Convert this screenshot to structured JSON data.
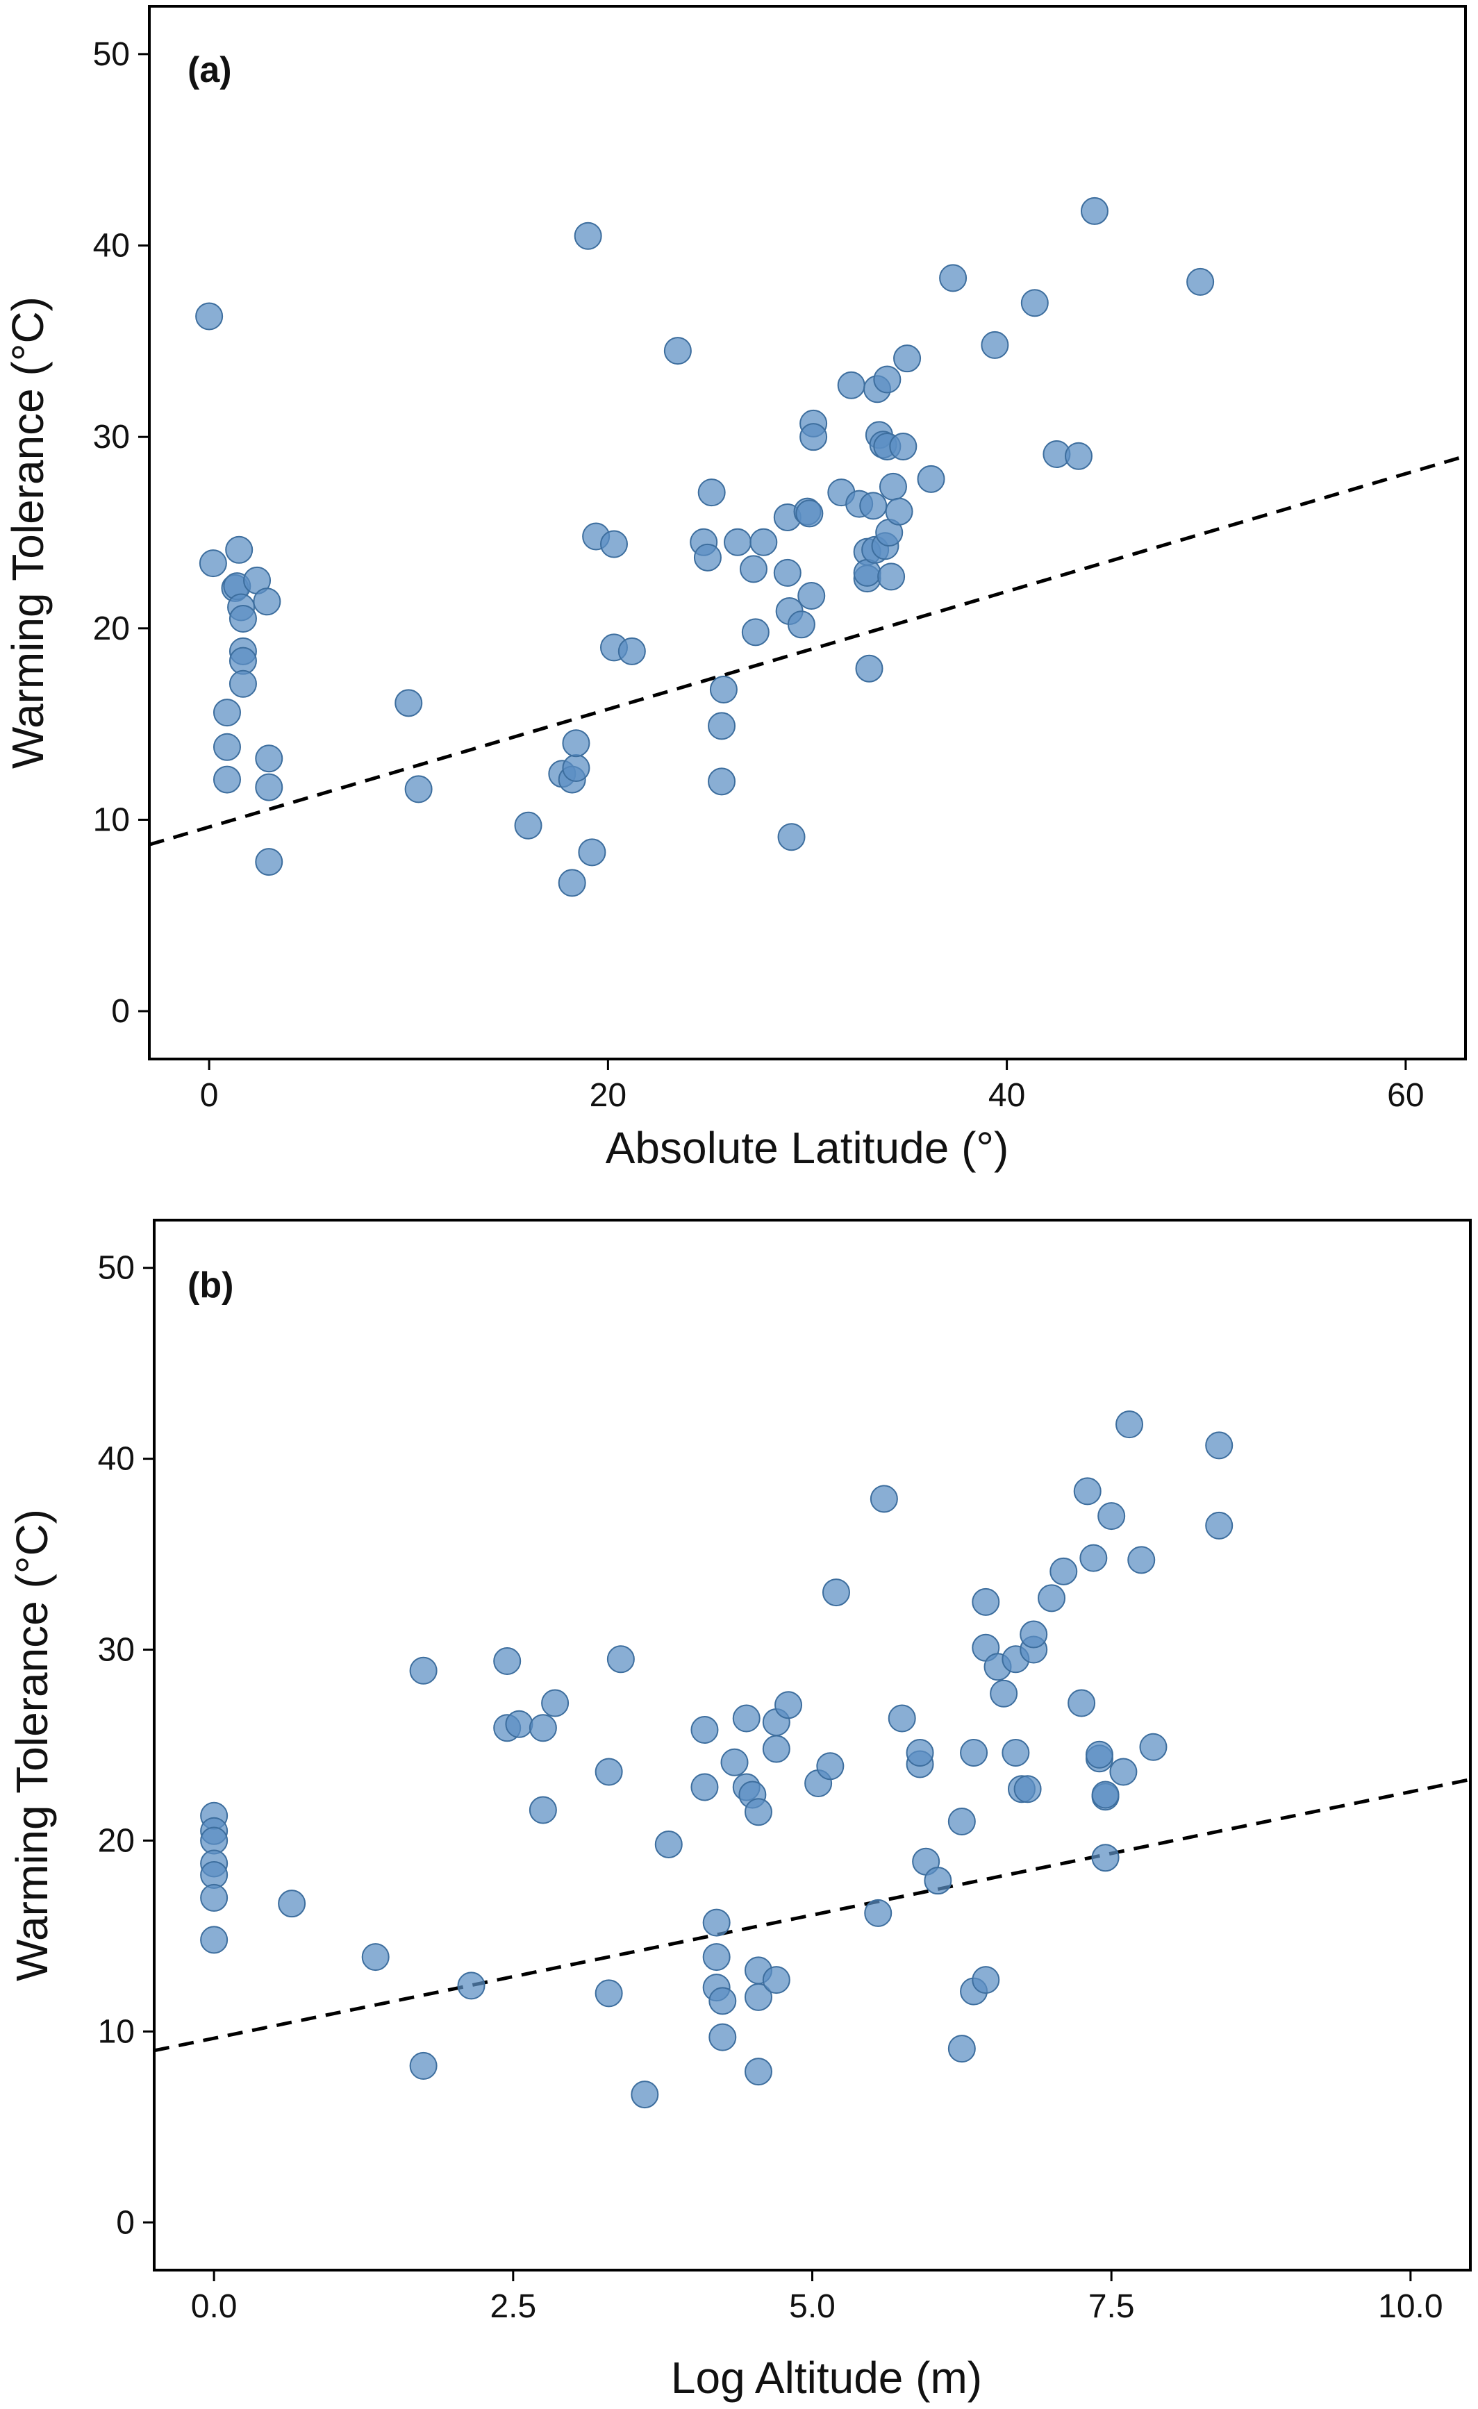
{
  "chart_data": [
    {
      "type": "scatter",
      "panel_label": "(a)",
      "xlabel": "Absolute Latitude (°)",
      "ylabel": "Warming Tolerance (°C)",
      "xlim": [
        -3,
        63
      ],
      "ylim": [
        -2.5,
        52.5
      ],
      "xticks": [
        0,
        20,
        40,
        60
      ],
      "yticks": [
        0,
        10,
        20,
        30,
        40,
        50
      ],
      "marker_color": "#5b8fc4",
      "trendline": {
        "style": "dashed",
        "x": [
          -3,
          63
        ],
        "y": [
          8.7,
          29.0
        ]
      },
      "points": [
        [
          0,
          36.3
        ],
        [
          0.2,
          23.4
        ],
        [
          0.9,
          15.6
        ],
        [
          0.9,
          13.8
        ],
        [
          0.9,
          12.1
        ],
        [
          1.3,
          22.1
        ],
        [
          1.4,
          22.2
        ],
        [
          1.5,
          24.1
        ],
        [
          1.6,
          21.1
        ],
        [
          1.7,
          20.5
        ],
        [
          1.7,
          18.8
        ],
        [
          1.7,
          18.3
        ],
        [
          1.7,
          17.1
        ],
        [
          2.4,
          22.5
        ],
        [
          2.9,
          21.4
        ],
        [
          3.0,
          13.2
        ],
        [
          3.0,
          11.7
        ],
        [
          3.0,
          7.8
        ],
        [
          10.0,
          16.1
        ],
        [
          10.5,
          11.6
        ],
        [
          16.0,
          9.7
        ],
        [
          17.7,
          12.4
        ],
        [
          18.2,
          12.1
        ],
        [
          18.4,
          12.7
        ],
        [
          18.4,
          14.0
        ],
        [
          18.2,
          6.7
        ],
        [
          19.0,
          40.5
        ],
        [
          19.2,
          8.3
        ],
        [
          19.4,
          24.8
        ],
        [
          20.3,
          24.4
        ],
        [
          20.3,
          19.0
        ],
        [
          21.2,
          18.8
        ],
        [
          23.5,
          34.5
        ],
        [
          24.8,
          24.5
        ],
        [
          25.0,
          23.7
        ],
        [
          25.2,
          27.1
        ],
        [
          25.7,
          12.0
        ],
        [
          25.7,
          14.9
        ],
        [
          25.8,
          16.8
        ],
        [
          26.5,
          24.5
        ],
        [
          27.3,
          23.1
        ],
        [
          27.4,
          19.8
        ],
        [
          27.8,
          24.5
        ],
        [
          29.0,
          25.8
        ],
        [
          29.0,
          22.9
        ],
        [
          29.1,
          20.9
        ],
        [
          29.2,
          9.1
        ],
        [
          29.7,
          20.2
        ],
        [
          30.0,
          26.1
        ],
        [
          30.1,
          26.0
        ],
        [
          30.2,
          21.7
        ],
        [
          30.3,
          30.7
        ],
        [
          30.3,
          30.0
        ],
        [
          31.7,
          27.1
        ],
        [
          32.2,
          32.7
        ],
        [
          32.6,
          26.5
        ],
        [
          33.0,
          24.0
        ],
        [
          33.0,
          22.6
        ],
        [
          33.0,
          22.9
        ],
        [
          33.1,
          17.9
        ],
        [
          33.3,
          26.4
        ],
        [
          33.4,
          24.1
        ],
        [
          33.5,
          32.5
        ],
        [
          33.6,
          30.1
        ],
        [
          33.8,
          29.6
        ],
        [
          33.9,
          24.3
        ],
        [
          34.0,
          33.0
        ],
        [
          34.0,
          29.5
        ],
        [
          34.1,
          25.0
        ],
        [
          34.2,
          22.7
        ],
        [
          34.3,
          27.4
        ],
        [
          34.6,
          26.1
        ],
        [
          34.8,
          29.5
        ],
        [
          35.0,
          34.1
        ],
        [
          36.2,
          27.8
        ],
        [
          37.3,
          38.3
        ],
        [
          39.4,
          34.8
        ],
        [
          41.4,
          37.0
        ],
        [
          42.5,
          29.1
        ],
        [
          43.6,
          29.0
        ],
        [
          44.4,
          41.8
        ],
        [
          49.7,
          38.1
        ]
      ]
    },
    {
      "type": "scatter",
      "panel_label": "(b)",
      "xlabel": "Log Altitude (m)",
      "ylabel": "Warming Tolerance (°C)",
      "xlim": [
        -0.5,
        10.5
      ],
      "ylim": [
        -2.5,
        52.5
      ],
      "xticks": [
        "0.0",
        "2.5",
        "5.0",
        "7.5",
        "10.0"
      ],
      "yticks": [
        0,
        10,
        20,
        30,
        40,
        50
      ],
      "marker_color": "#5b8fc4",
      "trendline": {
        "style": "dashed",
        "x": [
          -0.5,
          10.5
        ],
        "y": [
          9.0,
          23.2
        ]
      },
      "points": [
        [
          0,
          21.3
        ],
        [
          0,
          20.5
        ],
        [
          0,
          20.0
        ],
        [
          0,
          18.8
        ],
        [
          0,
          18.2
        ],
        [
          0,
          17.0
        ],
        [
          0,
          14.8
        ],
        [
          0.65,
          16.7
        ],
        [
          1.35,
          13.9
        ],
        [
          1.75,
          28.9
        ],
        [
          1.75,
          8.2
        ],
        [
          2.15,
          12.4
        ],
        [
          2.45,
          29.4
        ],
        [
          2.45,
          25.9
        ],
        [
          2.55,
          26.1
        ],
        [
          2.75,
          25.9
        ],
        [
          2.75,
          21.6
        ],
        [
          2.85,
          27.2
        ],
        [
          3.3,
          23.6
        ],
        [
          3.3,
          12.0
        ],
        [
          3.4,
          29.5
        ],
        [
          3.6,
          6.7
        ],
        [
          3.8,
          19.8
        ],
        [
          4.1,
          25.8
        ],
        [
          4.1,
          22.8
        ],
        [
          4.2,
          15.7
        ],
        [
          4.2,
          13.9
        ],
        [
          4.2,
          12.3
        ],
        [
          4.25,
          11.6
        ],
        [
          4.25,
          9.7
        ],
        [
          4.35,
          24.1
        ],
        [
          4.45,
          26.4
        ],
        [
          4.45,
          22.8
        ],
        [
          4.5,
          22.4
        ],
        [
          4.55,
          21.5
        ],
        [
          4.55,
          13.2
        ],
        [
          4.55,
          11.8
        ],
        [
          4.55,
          7.9
        ],
        [
          4.7,
          26.2
        ],
        [
          4.7,
          24.8
        ],
        [
          4.7,
          12.7
        ],
        [
          4.8,
          27.1
        ],
        [
          5.05,
          23.0
        ],
        [
          5.15,
          23.9
        ],
        [
          5.2,
          33.0
        ],
        [
          5.55,
          16.2
        ],
        [
          5.6,
          37.9
        ],
        [
          5.75,
          26.4
        ],
        [
          5.9,
          24.0
        ],
        [
          5.9,
          24.6
        ],
        [
          5.95,
          18.9
        ],
        [
          6.05,
          17.9
        ],
        [
          6.25,
          21.0
        ],
        [
          6.25,
          9.1
        ],
        [
          6.35,
          12.1
        ],
        [
          6.35,
          24.6
        ],
        [
          6.45,
          12.7
        ],
        [
          6.45,
          32.5
        ],
        [
          6.45,
          30.1
        ],
        [
          6.55,
          29.1
        ],
        [
          6.6,
          27.7
        ],
        [
          6.7,
          29.5
        ],
        [
          6.7,
          24.6
        ],
        [
          6.75,
          22.7
        ],
        [
          6.8,
          22.7
        ],
        [
          6.85,
          30.0
        ],
        [
          6.85,
          30.8
        ],
        [
          7.0,
          32.7
        ],
        [
          7.1,
          34.1
        ],
        [
          7.25,
          27.2
        ],
        [
          7.3,
          38.3
        ],
        [
          7.35,
          34.8
        ],
        [
          7.4,
          24.3
        ],
        [
          7.4,
          24.5
        ],
        [
          7.45,
          22.3
        ],
        [
          7.45,
          22.4
        ],
        [
          7.45,
          19.1
        ],
        [
          7.5,
          37.0
        ],
        [
          7.6,
          23.6
        ],
        [
          7.65,
          41.8
        ],
        [
          7.75,
          34.7
        ],
        [
          7.85,
          24.9
        ],
        [
          8.4,
          40.7
        ],
        [
          8.4,
          36.5
        ]
      ]
    }
  ]
}
